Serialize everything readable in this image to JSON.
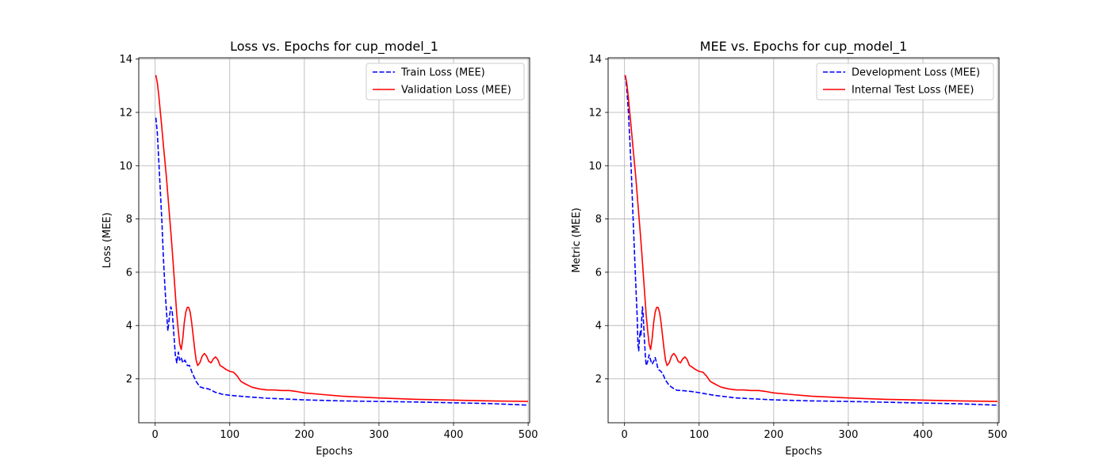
{
  "chart_data": [
    {
      "type": "line",
      "title": "Loss vs. Epochs for cup_model_1",
      "xlabel": "Epochs",
      "ylabel": "Loss (MEE)",
      "xlim": [
        -22,
        502
      ],
      "ylim": [
        0.35,
        14.05
      ],
      "xticks": [
        0,
        100,
        200,
        300,
        400,
        500
      ],
      "yticks": [
        2,
        4,
        6,
        8,
        10,
        12,
        14
      ],
      "grid": true,
      "legend_position": "top-right",
      "series": [
        {
          "name": "Train Loss (MEE)",
          "color": "#0000ff",
          "style": "dashed",
          "points": [
            [
              1,
              11.8
            ],
            [
              3,
              11.2
            ],
            [
              5,
              10.1
            ],
            [
              7,
              9.0
            ],
            [
              9,
              7.9
            ],
            [
              11,
              6.6
            ],
            [
              13,
              5.5
            ],
            [
              15,
              4.6
            ],
            [
              17,
              3.8
            ],
            [
              19,
              4.3
            ],
            [
              21,
              4.7
            ],
            [
              23,
              4.5
            ],
            [
              25,
              3.7
            ],
            [
              27,
              2.9
            ],
            [
              29,
              2.6
            ],
            [
              31,
              3.0
            ],
            [
              33,
              2.7
            ],
            [
              35,
              2.8
            ],
            [
              37,
              2.6
            ],
            [
              40,
              2.7
            ],
            [
              43,
              2.5
            ],
            [
              46,
              2.5
            ],
            [
              50,
              2.2
            ],
            [
              55,
              1.9
            ],
            [
              60,
              1.7
            ],
            [
              65,
              1.65
            ],
            [
              70,
              1.63
            ],
            [
              75,
              1.58
            ],
            [
              80,
              1.5
            ],
            [
              90,
              1.42
            ],
            [
              100,
              1.38
            ],
            [
              120,
              1.33
            ],
            [
              150,
              1.27
            ],
            [
              200,
              1.21
            ],
            [
              250,
              1.17
            ],
            [
              300,
              1.15
            ],
            [
              350,
              1.13
            ],
            [
              400,
              1.1
            ],
            [
              450,
              1.07
            ],
            [
              500,
              1.01
            ]
          ]
        },
        {
          "name": "Validation Loss (MEE)",
          "color": "#ff0000",
          "style": "solid",
          "points": [
            [
              1,
              13.4
            ],
            [
              3,
              13.1
            ],
            [
              5,
              12.6
            ],
            [
              7,
              12.0
            ],
            [
              9,
              11.4
            ],
            [
              11,
              10.8
            ],
            [
              13,
              10.2
            ],
            [
              15,
              9.6
            ],
            [
              17,
              8.9
            ],
            [
              19,
              8.2
            ],
            [
              21,
              7.5
            ],
            [
              23,
              6.8
            ],
            [
              25,
              6.0
            ],
            [
              27,
              5.2
            ],
            [
              29,
              4.4
            ],
            [
              31,
              3.8
            ],
            [
              33,
              3.3
            ],
            [
              35,
              3.1
            ],
            [
              37,
              3.5
            ],
            [
              39,
              4.1
            ],
            [
              41,
              4.5
            ],
            [
              43,
              4.68
            ],
            [
              45,
              4.68
            ],
            [
              47,
              4.5
            ],
            [
              49,
              4.1
            ],
            [
              51,
              3.6
            ],
            [
              53,
              3.1
            ],
            [
              55,
              2.7
            ],
            [
              57,
              2.5
            ],
            [
              60,
              2.6
            ],
            [
              63,
              2.85
            ],
            [
              66,
              2.95
            ],
            [
              69,
              2.85
            ],
            [
              72,
              2.65
            ],
            [
              75,
              2.6
            ],
            [
              78,
              2.75
            ],
            [
              81,
              2.82
            ],
            [
              84,
              2.72
            ],
            [
              87,
              2.5
            ],
            [
              90,
              2.45
            ],
            [
              95,
              2.35
            ],
            [
              100,
              2.28
            ],
            [
              105,
              2.25
            ],
            [
              110,
              2.1
            ],
            [
              115,
              1.9
            ],
            [
              120,
              1.82
            ],
            [
              125,
              1.75
            ],
            [
              130,
              1.68
            ],
            [
              140,
              1.62
            ],
            [
              150,
              1.58
            ],
            [
              160,
              1.58
            ],
            [
              170,
              1.56
            ],
            [
              180,
              1.56
            ],
            [
              190,
              1.52
            ],
            [
              200,
              1.47
            ],
            [
              220,
              1.42
            ],
            [
              250,
              1.35
            ],
            [
              300,
              1.28
            ],
            [
              350,
              1.23
            ],
            [
              400,
              1.2
            ],
            [
              450,
              1.17
            ],
            [
              500,
              1.15
            ]
          ]
        }
      ]
    },
    {
      "type": "line",
      "title": "MEE vs. Epochs for cup_model_1",
      "xlabel": "Epochs",
      "ylabel": "Metric (MEE)",
      "xlim": [
        -22,
        502
      ],
      "ylim": [
        0.35,
        14.05
      ],
      "xticks": [
        0,
        100,
        200,
        300,
        400,
        500
      ],
      "yticks": [
        2,
        4,
        6,
        8,
        10,
        12,
        14
      ],
      "grid": true,
      "legend_position": "top-right",
      "series": [
        {
          "name": "Development Loss (MEE)",
          "color": "#0000ff",
          "style": "dashed",
          "points": [
            [
              1,
              13.4
            ],
            [
              3,
              12.9
            ],
            [
              5,
              12.1
            ],
            [
              7,
              11.0
            ],
            [
              9,
              9.8
            ],
            [
              11,
              8.4
            ],
            [
              13,
              7.0
            ],
            [
              15,
              5.6
            ],
            [
              17,
              4.3
            ],
            [
              18,
              3.3
            ],
            [
              19,
              3.05
            ],
            [
              20,
              3.5
            ],
            [
              21,
              3.8
            ],
            [
              22,
              3.6
            ],
            [
              23,
              4.2
            ],
            [
              24,
              4.7
            ],
            [
              25,
              4.4
            ],
            [
              26,
              3.8
            ],
            [
              27,
              3.3
            ],
            [
              28,
              2.85
            ],
            [
              29,
              2.5
            ],
            [
              31,
              2.65
            ],
            [
              33,
              2.9
            ],
            [
              35,
              2.7
            ],
            [
              37,
              2.55
            ],
            [
              39,
              2.65
            ],
            [
              41,
              2.8
            ],
            [
              43,
              2.6
            ],
            [
              45,
              2.35
            ],
            [
              48,
              2.3
            ],
            [
              51,
              2.2
            ],
            [
              55,
              1.95
            ],
            [
              60,
              1.75
            ],
            [
              65,
              1.65
            ],
            [
              70,
              1.57
            ],
            [
              80,
              1.55
            ],
            [
              90,
              1.52
            ],
            [
              100,
              1.48
            ],
            [
              120,
              1.38
            ],
            [
              150,
              1.28
            ],
            [
              200,
              1.21
            ],
            [
              250,
              1.17
            ],
            [
              300,
              1.15
            ],
            [
              350,
              1.12
            ],
            [
              400,
              1.09
            ],
            [
              450,
              1.06
            ],
            [
              500,
              1.01
            ]
          ]
        },
        {
          "name": "Internal Test Loss (MEE)",
          "color": "#ff0000",
          "style": "solid",
          "points": [
            [
              1,
              13.4
            ],
            [
              3,
              13.1
            ],
            [
              5,
              12.6
            ],
            [
              7,
              12.0
            ],
            [
              9,
              11.4
            ],
            [
              11,
              10.8
            ],
            [
              13,
              10.2
            ],
            [
              15,
              9.6
            ],
            [
              17,
              8.9
            ],
            [
              19,
              8.2
            ],
            [
              21,
              7.5
            ],
            [
              23,
              6.8
            ],
            [
              25,
              6.0
            ],
            [
              27,
              5.2
            ],
            [
              29,
              4.4
            ],
            [
              31,
              3.8
            ],
            [
              33,
              3.3
            ],
            [
              35,
              3.1
            ],
            [
              37,
              3.5
            ],
            [
              39,
              4.1
            ],
            [
              41,
              4.5
            ],
            [
              43,
              4.68
            ],
            [
              45,
              4.68
            ],
            [
              47,
              4.5
            ],
            [
              49,
              4.1
            ],
            [
              51,
              3.6
            ],
            [
              53,
              3.1
            ],
            [
              55,
              2.7
            ],
            [
              57,
              2.5
            ],
            [
              60,
              2.6
            ],
            [
              63,
              2.85
            ],
            [
              66,
              2.95
            ],
            [
              69,
              2.85
            ],
            [
              72,
              2.65
            ],
            [
              75,
              2.6
            ],
            [
              78,
              2.75
            ],
            [
              81,
              2.82
            ],
            [
              84,
              2.72
            ],
            [
              87,
              2.5
            ],
            [
              90,
              2.45
            ],
            [
              95,
              2.35
            ],
            [
              100,
              2.28
            ],
            [
              105,
              2.25
            ],
            [
              110,
              2.1
            ],
            [
              115,
              1.9
            ],
            [
              120,
              1.82
            ],
            [
              125,
              1.75
            ],
            [
              130,
              1.68
            ],
            [
              140,
              1.62
            ],
            [
              150,
              1.58
            ],
            [
              160,
              1.58
            ],
            [
              170,
              1.56
            ],
            [
              180,
              1.56
            ],
            [
              190,
              1.52
            ],
            [
              200,
              1.47
            ],
            [
              220,
              1.42
            ],
            [
              250,
              1.35
            ],
            [
              300,
              1.28
            ],
            [
              350,
              1.23
            ],
            [
              400,
              1.2
            ],
            [
              450,
              1.17
            ],
            [
              500,
              1.15
            ]
          ]
        }
      ]
    }
  ]
}
